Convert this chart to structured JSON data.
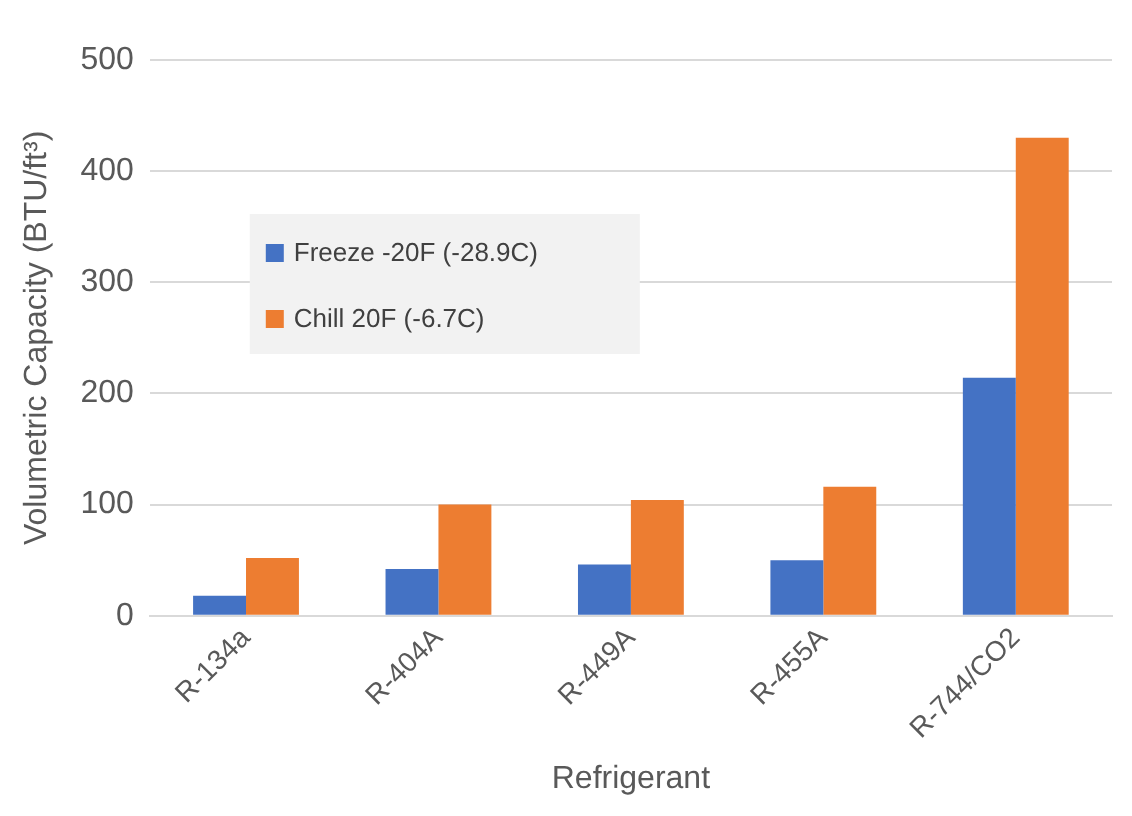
{
  "chart_data": {
    "type": "bar",
    "xlabel": "Refrigerant",
    "ylabel": "Volumetric Capacity (BTU/ft³)",
    "categories": [
      "R-134a",
      "R-404A",
      "R-449A",
      "R-455A",
      "R-744/CO2"
    ],
    "series": [
      {
        "name": "Freeze -20F (-28.9C)",
        "color": "#4472c4",
        "values": [
          18,
          42,
          46,
          50,
          214
        ]
      },
      {
        "name": "Chill 20F (-6.7C)",
        "color": "#ed7d31",
        "values": [
          52,
          100,
          104,
          116,
          430
        ]
      }
    ],
    "ylim": [
      0,
      500
    ],
    "yticks": [
      0,
      100,
      200,
      300,
      400,
      500
    ],
    "grid": "y",
    "legend": "left"
  }
}
